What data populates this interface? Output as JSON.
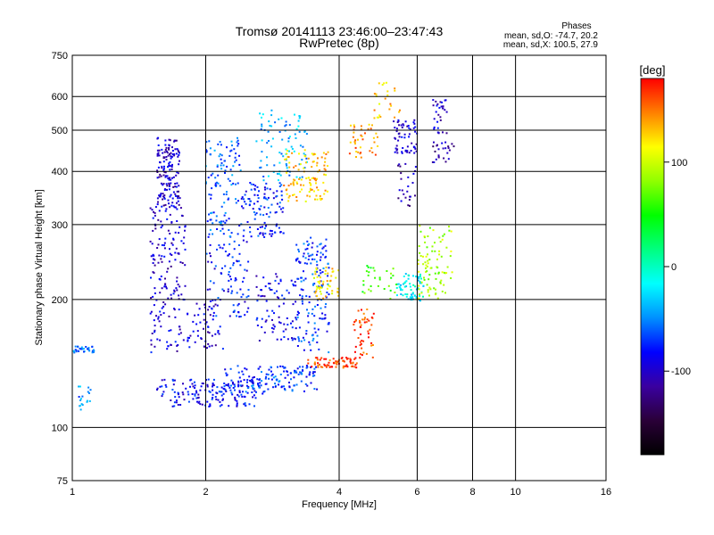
{
  "chart_data": {
    "type": "scatter",
    "title": "Tromsø 20141113 23:46:00–23:47:43",
    "subtitle": "RwPretec (8p)",
    "stats": {
      "heading": "Phases",
      "line_o": "mean, sd,O: -74.7, 20.2",
      "line_x": "mean, sd,X: 100.5, 27.9"
    },
    "xlabel": "Frequency [MHz]",
    "ylabel": "Stationary phase Virtual Height [km]",
    "xscale": "log",
    "yscale": "log",
    "xlim": [
      1,
      16
    ],
    "ylim": [
      75,
      750
    ],
    "xticks": [
      1,
      2,
      4,
      6,
      8,
      10,
      16
    ],
    "xtick_labels": [
      "1",
      "2",
      "4",
      "6",
      "8",
      "10",
      "16"
    ],
    "yticks": [
      75,
      100,
      200,
      300,
      400,
      500,
      600,
      750
    ],
    "ytick_labels": [
      "75",
      "100",
      "200",
      "300",
      "400",
      "500",
      "600",
      "750"
    ],
    "x_gridlines": [
      2,
      4,
      6,
      8,
      10
    ],
    "y_gridlines": [
      100,
      200,
      300,
      400,
      500,
      600
    ],
    "grid": true,
    "colorbar": {
      "label": "[deg]",
      "range": [
        -180,
        180
      ],
      "ticks": [
        100,
        0,
        -100
      ],
      "tick_labels": [
        "100",
        "0",
        "-100"
      ],
      "colormap": [
        "#000000",
        "#2a0038",
        "#3a00a0",
        "#0000ff",
        "#0090ff",
        "#00ffff",
        "#00ff80",
        "#00ff00",
        "#90ff00",
        "#ffff00",
        "#ff8000",
        "#ff0000"
      ]
    },
    "clusters": [
      {
        "x": [
          1.0,
          1.12
        ],
        "y": [
          150,
          155
        ],
        "phase": -60,
        "n": 30
      },
      {
        "x": [
          1.02,
          1.1
        ],
        "y": [
          110,
          125
        ],
        "phase": -50,
        "n": 18
      },
      {
        "x": [
          1.55,
          1.75
        ],
        "y": [
          330,
          480
        ],
        "phase": -100,
        "n": 160
      },
      {
        "x": [
          1.5,
          1.8
        ],
        "y": [
          200,
          330
        ],
        "phase": -100,
        "n": 120
      },
      {
        "x": [
          1.5,
          2.2
        ],
        "y": [
          150,
          200
        ],
        "phase": -95,
        "n": 110
      },
      {
        "x": [
          1.55,
          2.6
        ],
        "y": [
          112,
          130
        ],
        "phase": -85,
        "n": 150
      },
      {
        "x": [
          2.0,
          2.4
        ],
        "y": [
          280,
          480
        ],
        "phase": -60,
        "n": 120
      },
      {
        "x": [
          2.0,
          2.5
        ],
        "y": [
          180,
          280
        ],
        "phase": -80,
        "n": 90
      },
      {
        "x": [
          2.2,
          3.6
        ],
        "y": [
          120,
          140
        ],
        "phase": -70,
        "n": 160
      },
      {
        "x": [
          2.4,
          3.0
        ],
        "y": [
          280,
          380
        ],
        "phase": -75,
        "n": 110
      },
      {
        "x": [
          2.6,
          3.4
        ],
        "y": [
          380,
          560
        ],
        "phase": -40,
        "n": 90
      },
      {
        "x": [
          3.0,
          3.8
        ],
        "y": [
          340,
          450
        ],
        "phase": 130,
        "n": 110
      },
      {
        "x": [
          3.2,
          3.8
        ],
        "y": [
          150,
          280
        ],
        "phase": -70,
        "n": 150
      },
      {
        "x": [
          2.6,
          3.2
        ],
        "y": [
          160,
          230
        ],
        "phase": -90,
        "n": 80
      },
      {
        "x": [
          3.5,
          4.0
        ],
        "y": [
          200,
          240
        ],
        "phase": 120,
        "n": 50
      },
      {
        "x": [
          3.4,
          4.4
        ],
        "y": [
          138,
          146
        ],
        "phase": 165,
        "n": 70
      },
      {
        "x": [
          4.3,
          4.8
        ],
        "y": [
          145,
          190
        ],
        "phase": 165,
        "n": 50
      },
      {
        "x": [
          4.2,
          4.9
        ],
        "y": [
          430,
          520
        ],
        "phase": 145,
        "n": 40
      },
      {
        "x": [
          4.8,
          5.5
        ],
        "y": [
          530,
          650
        ],
        "phase": 130,
        "n": 25
      },
      {
        "x": [
          5.3,
          6.0
        ],
        "y": [
          440,
          530
        ],
        "phase": -100,
        "n": 60
      },
      {
        "x": [
          5.4,
          6.0
        ],
        "y": [
          330,
          420
        ],
        "phase": -110,
        "n": 25
      },
      {
        "x": [
          5.4,
          6.2
        ],
        "y": [
          198,
          230
        ],
        "phase": -20,
        "n": 70
      },
      {
        "x": [
          6.0,
          7.2
        ],
        "y": [
          200,
          300
        ],
        "phase": 90,
        "n": 90
      },
      {
        "x": [
          6.5,
          7.0
        ],
        "y": [
          490,
          590
        ],
        "phase": -100,
        "n": 30
      },
      {
        "x": [
          6.5,
          7.3
        ],
        "y": [
          420,
          470
        ],
        "phase": -110,
        "n": 25
      },
      {
        "x": [
          4.5,
          5.4
        ],
        "y": [
          200,
          240
        ],
        "phase": 60,
        "n": 30
      }
    ]
  }
}
